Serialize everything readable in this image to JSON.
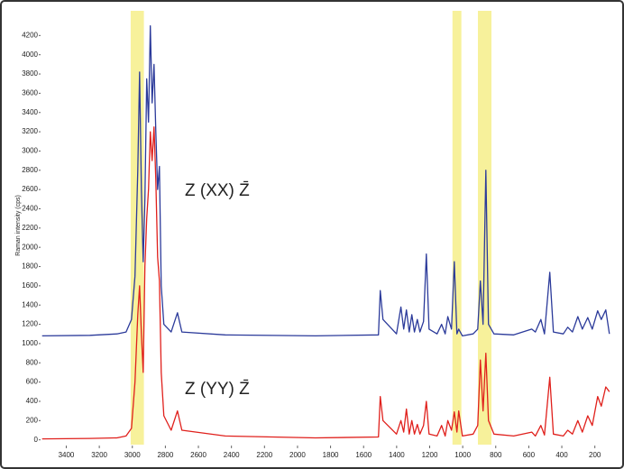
{
  "chart_data": {
    "type": "line",
    "y_label": "Raman intensity (cps)",
    "annotations": [
      "Z (XX) Z̄",
      "Z (YY) Z̄"
    ],
    "xlim": [
      3550,
      100
    ],
    "ylim": [
      -50,
      4400
    ],
    "xticks": [
      3400,
      3200,
      3000,
      2800,
      2600,
      2400,
      2200,
      2000,
      1800,
      1600,
      1400,
      1200,
      1000,
      800,
      600,
      400,
      200
    ],
    "yticks": [
      0,
      200,
      400,
      600,
      800,
      1000,
      1200,
      1400,
      1600,
      1800,
      2000,
      2200,
      2400,
      2600,
      2800,
      3000,
      3200,
      3400,
      3600,
      3800,
      4000,
      4200
    ],
    "highlight_color": "#f6ee8a",
    "highlights": [
      [
        3010,
        2930
      ],
      [
        1062,
        1008
      ],
      [
        908,
        826
      ]
    ],
    "x": [
      3546,
      3257,
      3093,
      3038,
      3005,
      2984,
      2967,
      2956,
      2945,
      2934,
      2924,
      2913,
      2902,
      2891,
      2880,
      2869,
      2858,
      2847,
      2836,
      2825,
      2809,
      2765,
      2727,
      2700,
      2438,
      1892,
      1510,
      1499,
      1483,
      1401,
      1374,
      1357,
      1341,
      1324,
      1308,
      1292,
      1275,
      1259,
      1237,
      1220,
      1204,
      1155,
      1128,
      1106,
      1090,
      1068,
      1051,
      1035,
      1024,
      1002,
      937,
      909,
      893,
      877,
      860,
      844,
      811,
      691,
      582,
      560,
      527,
      505,
      473,
      451,
      391,
      364,
      336,
      303,
      276,
      243,
      216,
      183,
      161,
      134,
      112
    ],
    "series": [
      {
        "color": "#2b3a9a",
        "values": [
          1080,
          1085,
          1100,
          1120,
          1250,
          1700,
          2800,
          3820,
          2600,
          1850,
          2500,
          3750,
          3300,
          4300,
          3500,
          3900,
          3200,
          2600,
          2840,
          1600,
          1200,
          1120,
          1320,
          1120,
          1090,
          1080,
          1090,
          1550,
          1250,
          1100,
          1380,
          1150,
          1350,
          1120,
          1300,
          1120,
          1250,
          1120,
          1230,
          1930,
          1150,
          1100,
          1200,
          1100,
          1280,
          1150,
          1850,
          1100,
          1150,
          1080,
          1100,
          1150,
          1650,
          1200,
          2800,
          1200,
          1100,
          1090,
          1150,
          1120,
          1250,
          1100,
          1740,
          1120,
          1100,
          1170,
          1120,
          1280,
          1150,
          1270,
          1150,
          1340,
          1250,
          1350,
          1100
        ]
      },
      {
        "color": "#e0201c",
        "values": [
          10,
          15,
          20,
          40,
          120,
          600,
          1300,
          1600,
          1100,
          700,
          1800,
          2300,
          2600,
          3200,
          2900,
          3250,
          2700,
          1900,
          1650,
          700,
          250,
          100,
          300,
          100,
          40,
          20,
          30,
          450,
          200,
          60,
          200,
          80,
          320,
          60,
          200,
          60,
          160,
          60,
          150,
          400,
          60,
          40,
          150,
          40,
          200,
          100,
          290,
          80,
          300,
          40,
          60,
          150,
          830,
          300,
          900,
          200,
          60,
          40,
          80,
          40,
          150,
          50,
          650,
          60,
          40,
          100,
          60,
          200,
          80,
          250,
          150,
          450,
          350,
          550,
          500
        ]
      }
    ]
  }
}
